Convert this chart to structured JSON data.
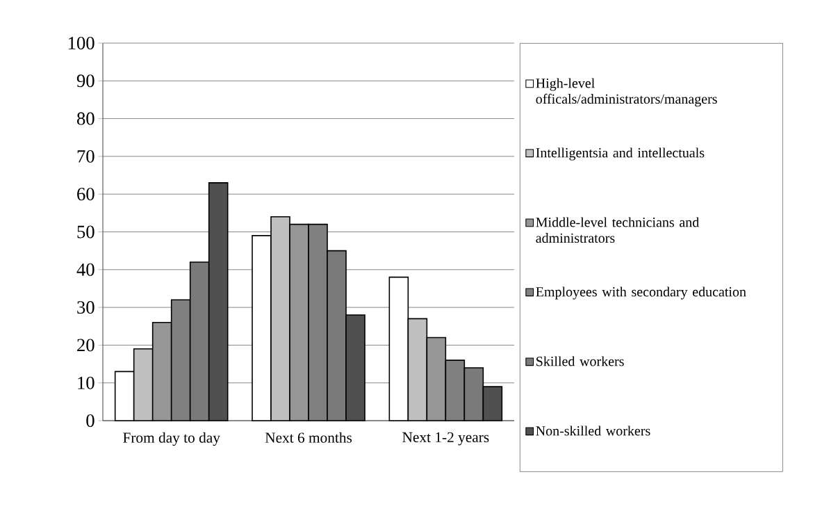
{
  "chart_data": {
    "type": "bar",
    "categories": [
      "From day to day",
      "Next 6 months",
      "Next 1-2 years"
    ],
    "series": [
      {
        "name": "High-level officals/administrators/managers",
        "color": "#ffffff",
        "values": [
          13,
          49,
          38
        ]
      },
      {
        "name": "Intelligentsia and intellectuals",
        "color": "#c0c0c0",
        "values": [
          19,
          54,
          27
        ]
      },
      {
        "name": "Middle-level technicians and administrators",
        "color": "#969696",
        "values": [
          26,
          52,
          22
        ]
      },
      {
        "name": "Employees with secondary education",
        "color": "#808080",
        "values": [
          32,
          52,
          16
        ]
      },
      {
        "name": "Skilled workers",
        "color": "#7a7a7a",
        "values": [
          42,
          45,
          14
        ]
      },
      {
        "name": "Non-skilled workers",
        "color": "#505050",
        "values": [
          63,
          28,
          9
        ]
      }
    ],
    "ylim": [
      0,
      100
    ],
    "yticks": [
      0,
      10,
      20,
      30,
      40,
      50,
      60,
      70,
      80,
      90,
      100
    ],
    "grid": "y",
    "legend": "right"
  }
}
